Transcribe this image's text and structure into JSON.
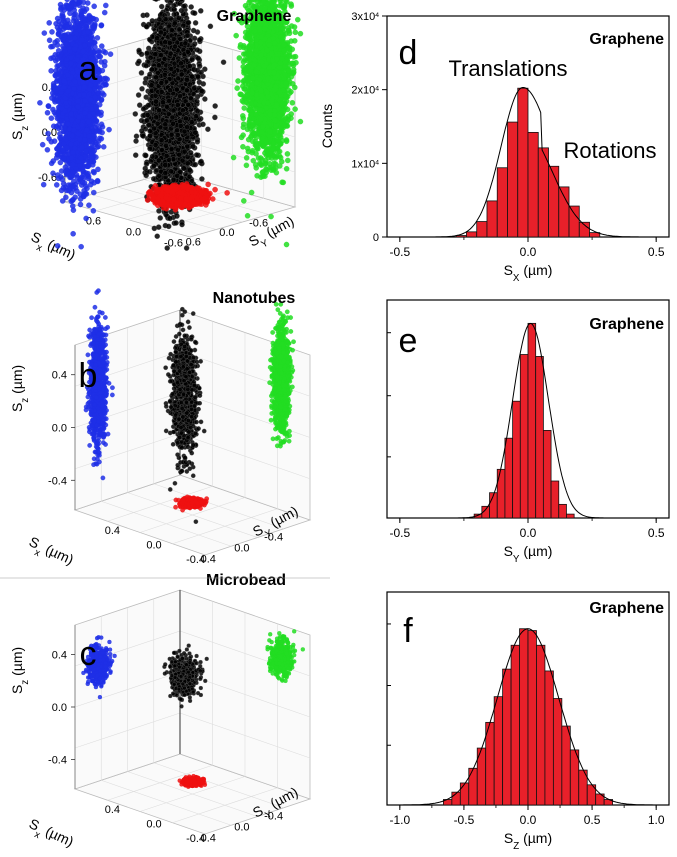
{
  "chart_data": [
    {
      "panel": "a",
      "type": "scatter",
      "title": "Graphene",
      "dimensions": "3d",
      "axes": {
        "z": {
          "label": "S",
          "subscript": "z",
          "unit": "(µm)",
          "ticks": [
            "0.6",
            "0.0",
            "-0.6"
          ],
          "range": [
            -0.9,
            0.9
          ]
        },
        "x": {
          "label": "S",
          "subscript": "x",
          "unit": "(µm)",
          "ticks": [
            "-0.6",
            "0.0",
            "0.6"
          ],
          "range": [
            -0.9,
            0.9
          ]
        },
        "y": {
          "label": "S",
          "subscript": "Y",
          "unit": "(µm)",
          "ticks": [
            "0.6",
            "0.0",
            "-0.6"
          ],
          "range": [
            -0.9,
            0.9
          ]
        }
      },
      "series": [
        {
          "projection": "x-z plane",
          "color": "#1f2fe6",
          "spread": 0.55
        },
        {
          "projection": "3d",
          "color": "#000000",
          "spread": 0.55
        },
        {
          "projection": "y-z plane",
          "color": "#22dd22",
          "spread": 0.55
        },
        {
          "projection": "x-y plane",
          "color": "#ee1111",
          "spread": 0.25
        }
      ],
      "grid": true
    },
    {
      "panel": "b",
      "type": "scatter",
      "title": "Nanotubes",
      "dimensions": "3d",
      "axes": {
        "z": {
          "label": "S",
          "subscript": "z",
          "unit": "(µm)",
          "ticks": [
            "0.4",
            "0.0",
            "-0.4"
          ],
          "range": [
            -0.5,
            0.5
          ]
        },
        "x": {
          "label": "S",
          "subscript": "x",
          "unit": "(µm)",
          "ticks": [
            "-0.4",
            "0.0",
            "0.4"
          ],
          "range": [
            -0.5,
            0.5
          ]
        },
        "y": {
          "label": "S",
          "subscript": "Y",
          "unit": "(µm)",
          "ticks": [
            "0.4",
            "0.0",
            "-0.4"
          ],
          "range": [
            -0.5,
            0.5
          ]
        }
      },
      "series": [
        {
          "projection": "x-z plane",
          "color": "#1f2fe6"
        },
        {
          "projection": "3d",
          "color": "#000000"
        },
        {
          "projection": "y-z plane",
          "color": "#22dd22"
        },
        {
          "projection": "x-y plane",
          "color": "#ee1111"
        }
      ],
      "grid": true
    },
    {
      "panel": "c",
      "type": "scatter",
      "title": "Microbead",
      "dimensions": "3d",
      "axes": {
        "z": {
          "label": "S",
          "subscript": "z",
          "unit": "(µm)",
          "ticks": [
            "0.4",
            "0.0",
            "-0.4"
          ],
          "range": [
            -0.5,
            0.5
          ]
        },
        "x": {
          "label": "S",
          "subscript": "x",
          "unit": "(µm)",
          "ticks": [
            "-0.4",
            "0.0",
            "0.4"
          ],
          "range": [
            -0.5,
            0.5
          ]
        },
        "y": {
          "label": "S",
          "subscript": "Y",
          "unit": "(µm)",
          "ticks": [
            "0.4",
            "0.0",
            "-0.4"
          ],
          "range": [
            -0.5,
            0.5
          ]
        }
      },
      "series": [
        {
          "projection": "x-z plane",
          "color": "#1f2fe6"
        },
        {
          "projection": "3d",
          "color": "#000000"
        },
        {
          "projection": "y-z plane",
          "color": "#22dd22"
        },
        {
          "projection": "x-y plane",
          "color": "#ee1111"
        }
      ],
      "grid": true
    },
    {
      "panel": "d",
      "type": "bar",
      "title": "Graphene",
      "xlabel": {
        "label": "S",
        "subscript": "X",
        "unit": "(µm)"
      },
      "ylabel": "Counts",
      "xlim": [
        -0.55,
        0.55
      ],
      "ylim": [
        0,
        30000
      ],
      "xticks": [
        "-0.5",
        "0.0",
        "0.5"
      ],
      "yticks": [
        {
          "value": 0,
          "base": "0",
          "exp": ""
        },
        {
          "value": 10000,
          "base": "1x10",
          "exp": "4"
        },
        {
          "value": 20000,
          "base": "2x10",
          "exp": "4"
        },
        {
          "value": 30000,
          "base": "3x10",
          "exp": "4"
        }
      ],
      "bin_width": 0.04,
      "x": [
        -0.26,
        -0.22,
        -0.18,
        -0.14,
        -0.1,
        -0.06,
        -0.02,
        0.02,
        0.06,
        0.1,
        0.14,
        0.18,
        0.22,
        0.26
      ],
      "values": [
        200,
        700,
        2100,
        4900,
        9400,
        15600,
        20200,
        14200,
        12100,
        9600,
        6800,
        4200,
        2000,
        600
      ],
      "fit": {
        "type": "gaussian",
        "center": -0.02,
        "sigma": 0.085,
        "peak": 20300
      },
      "annotations": [
        "Translations",
        "Rotations"
      ],
      "bar_color": "#e8202a"
    },
    {
      "panel": "e",
      "type": "bar",
      "title": "Graphene",
      "xlabel": {
        "label": "S",
        "subscript": "Y",
        "unit": "(µm)"
      },
      "xlim": [
        -0.55,
        0.55
      ],
      "xticks": [
        "-0.5",
        "0.0",
        "0.5"
      ],
      "bin_width": 0.03,
      "x": [
        -0.195,
        -0.165,
        -0.135,
        -0.105,
        -0.075,
        -0.045,
        -0.015,
        0.015,
        0.045,
        0.075,
        0.105,
        0.135,
        0.165
      ],
      "values": [
        0.02,
        0.06,
        0.13,
        0.25,
        0.41,
        0.6,
        0.84,
        1.0,
        0.83,
        0.45,
        0.19,
        0.07,
        0.02
      ],
      "fit": {
        "type": "gaussian",
        "center": 0.01,
        "sigma": 0.07
      },
      "bar_color": "#e8202a"
    },
    {
      "panel": "f",
      "type": "bar",
      "title": "Graphene",
      "xlabel": {
        "label": "S",
        "subscript": "Z",
        "unit": "(µm)"
      },
      "xlim": [
        -1.1,
        1.1
      ],
      "xticks": [
        "-1.0",
        "-0.5",
        "0.0",
        "0.5",
        "1.0"
      ],
      "bin_width": 0.066,
      "x": [
        -0.627,
        -0.561,
        -0.495,
        -0.429,
        -0.363,
        -0.297,
        -0.231,
        -0.165,
        -0.099,
        -0.033,
        0.033,
        0.099,
        0.165,
        0.231,
        0.297,
        0.363,
        0.429,
        0.495,
        0.561,
        0.627
      ],
      "values": [
        0.03,
        0.07,
        0.12,
        0.2,
        0.31,
        0.45,
        0.59,
        0.74,
        0.87,
        0.96,
        0.95,
        0.87,
        0.73,
        0.58,
        0.43,
        0.3,
        0.19,
        0.11,
        0.06,
        0.03
      ],
      "fit": {
        "type": "gaussian",
        "center": 0.0,
        "sigma": 0.24
      },
      "bar_color": "#e8202a"
    }
  ]
}
